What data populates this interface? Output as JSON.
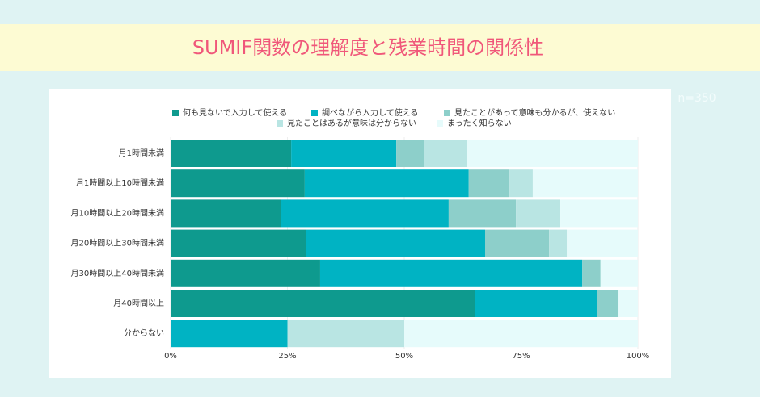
{
  "chart_data": {
    "type": "stacked-barh",
    "title": "SUMIF関数の理解度と残業時間の関係性",
    "annotation": "n=350",
    "categories": [
      "月1時間未満",
      "月1時間以上10時間未満",
      "月10時間以上20時間未満",
      "月20時間以上30時間未満",
      "月30時間以上40時間未満",
      "月40時間以上",
      "分からない"
    ],
    "series": [
      {
        "name": "何も見ないで入力して使える",
        "color": "#0e9a8e",
        "values": [
          25.8,
          28.7,
          23.7,
          28.9,
          32.0,
          65.2,
          0
        ]
      },
      {
        "name": "調べながら入力して使える",
        "color": "#00b3c3",
        "values": [
          22.5,
          35.1,
          35.8,
          38.4,
          56.1,
          26.1,
          25
        ]
      },
      {
        "name": "見たことがあって意味も分かるが、使えない",
        "color": "#8dcfca",
        "values": [
          5.9,
          8.7,
          14.4,
          13.7,
          3.9,
          4.4,
          0
        ]
      },
      {
        "name": "見たことはあるが意味は分からない",
        "color": "#b9e5e3",
        "values": [
          9.3,
          5.0,
          9.5,
          3.8,
          0,
          0,
          25
        ]
      },
      {
        "name": "まったく知らない",
        "color": "#e6fbfb",
        "values": [
          36.5,
          22.5,
          16.6,
          15.2,
          8.0,
          4.3,
          50
        ]
      }
    ],
    "xlim": [
      0,
      100
    ],
    "xticks": [
      {
        "value": 0,
        "label": "0%"
      },
      {
        "value": 25,
        "label": "25%"
      },
      {
        "value": 50,
        "label": "50%"
      },
      {
        "value": 75,
        "label": "75%"
      },
      {
        "value": 100,
        "label": "100%"
      }
    ],
    "grid": true
  }
}
